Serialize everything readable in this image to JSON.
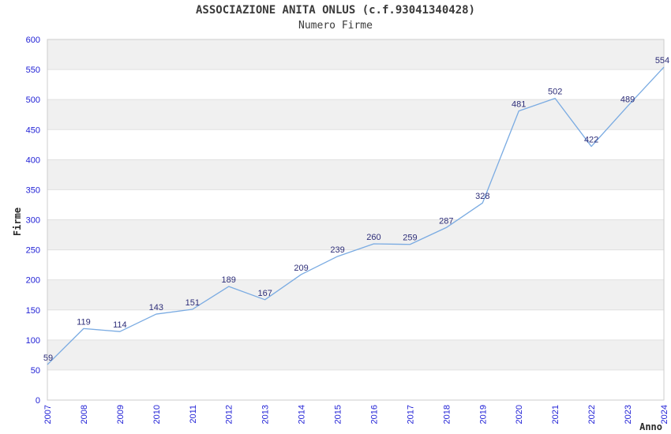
{
  "chart_data": {
    "type": "line",
    "title": "ASSOCIAZIONE ANITA ONLUS (c.f.93041340428)",
    "subtitle": "Numero Firme",
    "xlabel": "Anno",
    "ylabel": "Firme",
    "categories": [
      "2007",
      "2008",
      "2009",
      "2010",
      "2011",
      "2012",
      "2013",
      "2014",
      "2015",
      "2016",
      "2017",
      "2018",
      "2019",
      "2020",
      "2021",
      "2022",
      "2023",
      "2024"
    ],
    "values": [
      59,
      119,
      114,
      143,
      151,
      189,
      167,
      209,
      239,
      260,
      259,
      287,
      328,
      481,
      502,
      422,
      489,
      554
    ],
    "ylim": [
      0,
      600
    ],
    "ytick_step": 50,
    "grid": true,
    "legend_position": "none",
    "band_alternating": true,
    "colors": {
      "line": "#7aabe2",
      "tick_label": "#2121d6",
      "data_label": "#2d2d78",
      "band": "#f0f0f0",
      "gridline": "#e0e0e0",
      "border": "#cccccc",
      "axis_title": "#2a2a2a",
      "title": "#3a3a3a",
      "background": "#ffffff"
    }
  }
}
